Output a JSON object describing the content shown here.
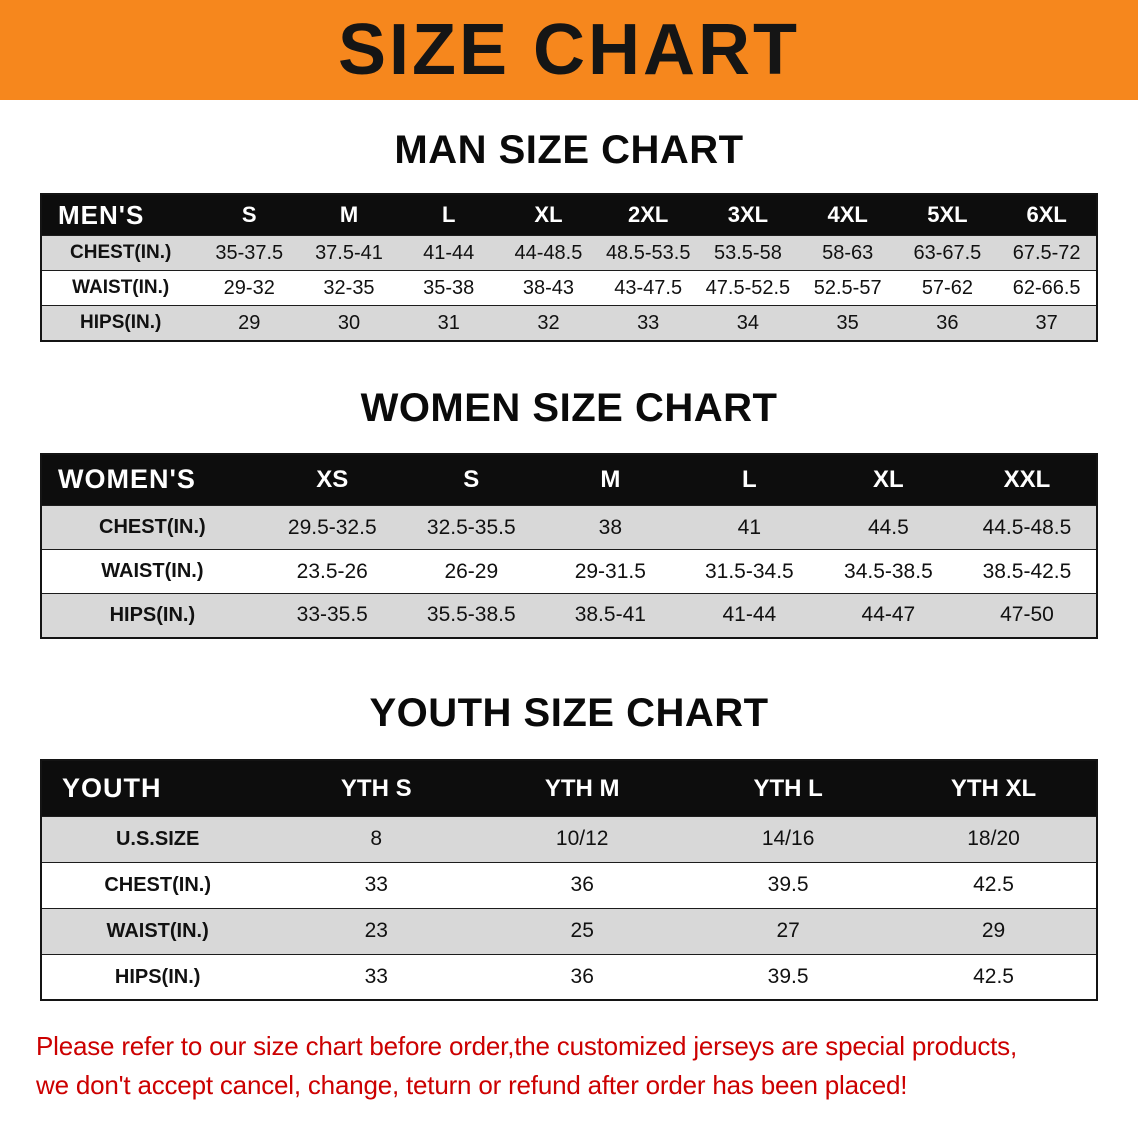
{
  "banner": {
    "title": "SIZE CHART"
  },
  "sections": [
    {
      "id": "men",
      "heading": "MAN SIZE CHART",
      "header_row": [
        "MEN'S",
        "S",
        "M",
        "L",
        "XL",
        "2XL",
        "3XL",
        "4XL",
        "5XL",
        "6XL"
      ],
      "rows": [
        [
          "CHEST(IN.)",
          "35-37.5",
          "37.5-41",
          "41-44",
          "44-48.5",
          "48.5-53.5",
          "53.5-58",
          "58-63",
          "63-67.5",
          "67.5-72"
        ],
        [
          "WAIST(IN.)",
          "29-32",
          "32-35",
          "35-38",
          "38-43",
          "43-47.5",
          "47.5-52.5",
          "52.5-57",
          "57-62",
          "62-66.5"
        ],
        [
          "HIPS(IN.)",
          "29",
          "30",
          "31",
          "32",
          "33",
          "34",
          "35",
          "36",
          "37"
        ]
      ]
    },
    {
      "id": "women",
      "heading": "WOMEN SIZE CHART",
      "header_row": [
        "WOMEN'S",
        "XS",
        "S",
        "M",
        "L",
        "XL",
        "XXL"
      ],
      "rows": [
        [
          "CHEST(IN.)",
          "29.5-32.5",
          "32.5-35.5",
          "38",
          "41",
          "44.5",
          "44.5-48.5"
        ],
        [
          "WAIST(IN.)",
          "23.5-26",
          "26-29",
          "29-31.5",
          "31.5-34.5",
          "34.5-38.5",
          "38.5-42.5"
        ],
        [
          "HIPS(IN.)",
          "33-35.5",
          "35.5-38.5",
          "38.5-41",
          "41-44",
          "44-47",
          "47-50"
        ]
      ]
    },
    {
      "id": "youth",
      "heading": "YOUTH SIZE CHART",
      "header_row": [
        "YOUTH",
        "YTH S",
        "YTH M",
        "YTH L",
        "YTH XL"
      ],
      "rows": [
        [
          "U.S.SIZE",
          "8",
          "10/12",
          "14/16",
          "18/20"
        ],
        [
          "CHEST(IN.)",
          "33",
          "36",
          "39.5",
          "42.5"
        ],
        [
          "WAIST(IN.)",
          "23",
          "25",
          "27",
          "29"
        ],
        [
          "HIPS(IN.)",
          "33",
          "36",
          "39.5",
          "42.5"
        ]
      ]
    }
  ],
  "disclaimer": {
    "line1": "Please refer to our size chart before order,the customized jerseys are special products,",
    "line2": "we don't accept cancel, change, teturn or refund after order has been placed!"
  },
  "colors": {
    "banner_bg": "#f6871d",
    "table_header_bg": "#0d0d0d",
    "row_stripe": "#d8d8d8",
    "disclaimer_red": "#cc0000"
  }
}
